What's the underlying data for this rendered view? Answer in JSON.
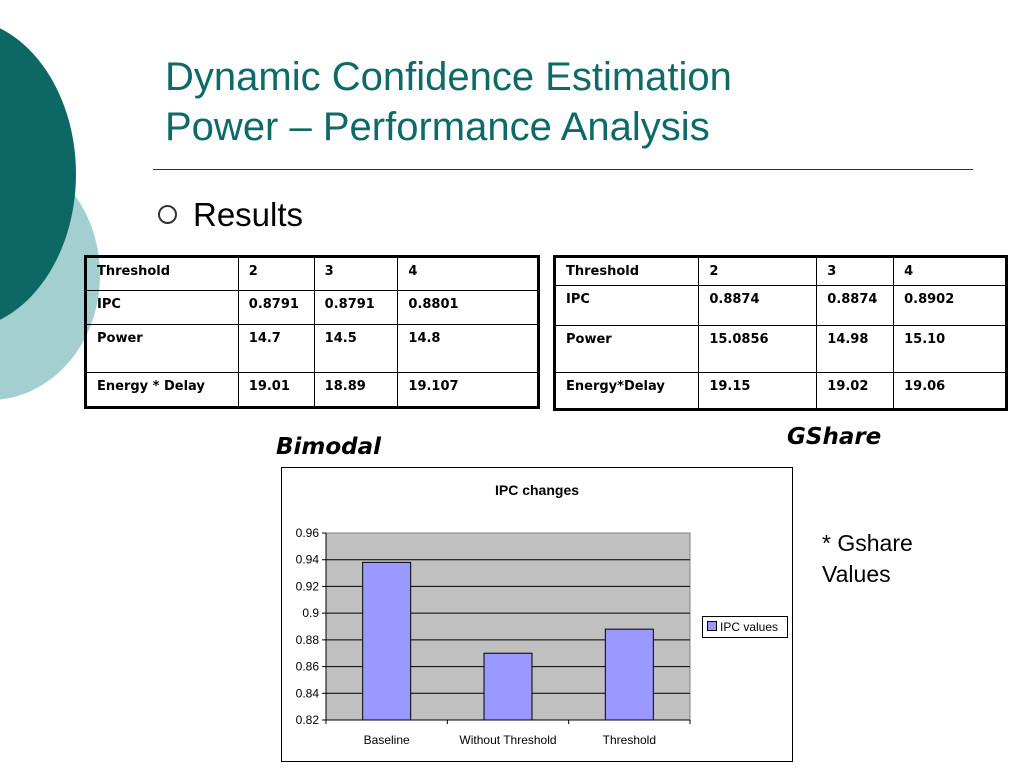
{
  "slide": {
    "title_lines": [
      "Dynamic Confidence Estimation",
      "Power – Performance Analysis"
    ],
    "bullet": "Results",
    "note": "* Gshare Values",
    "colors": {
      "title": "#0e6a69",
      "deco_dark": "#0d6864",
      "deco_light": "#a3cfd0"
    }
  },
  "tables": {
    "bimodal": {
      "caption": "Bimodal",
      "rows": [
        [
          "Threshold",
          "2",
          "3",
          "4"
        ],
        [
          "IPC",
          "0.8791",
          "0.8791",
          "0.8801"
        ],
        [
          "Power",
          "14.7",
          "14.5",
          "14.8"
        ],
        [
          "Energy * Delay",
          "19.01",
          "18.89",
          "19.107"
        ]
      ]
    },
    "gshare": {
      "caption": "GShare",
      "rows": [
        [
          "Threshold",
          "2",
          "3",
          "4"
        ],
        [
          "IPC",
          "0.8874",
          "0.8874",
          "0.8902"
        ],
        [
          "Power",
          "15.0856",
          "14.98",
          "15.10"
        ],
        [
          "Energy*Delay",
          "19.15",
          "19.02",
          "19.06"
        ]
      ]
    }
  },
  "chart_data": {
    "type": "bar",
    "title": "IPC changes",
    "categories": [
      "Baseline",
      "Without Threshold",
      "Threshold"
    ],
    "series": [
      {
        "name": "IPC values",
        "values": [
          0.938,
          0.87,
          0.888
        ],
        "color": "#9999ff"
      }
    ],
    "ylim": [
      0.82,
      0.96
    ],
    "yticks": [
      "0.96",
      "0.94",
      "0.92",
      "0.9",
      "0.88",
      "0.86",
      "0.84",
      "0.82"
    ],
    "grid": true,
    "plot_background": "#c0c0c0",
    "legend": "right"
  }
}
